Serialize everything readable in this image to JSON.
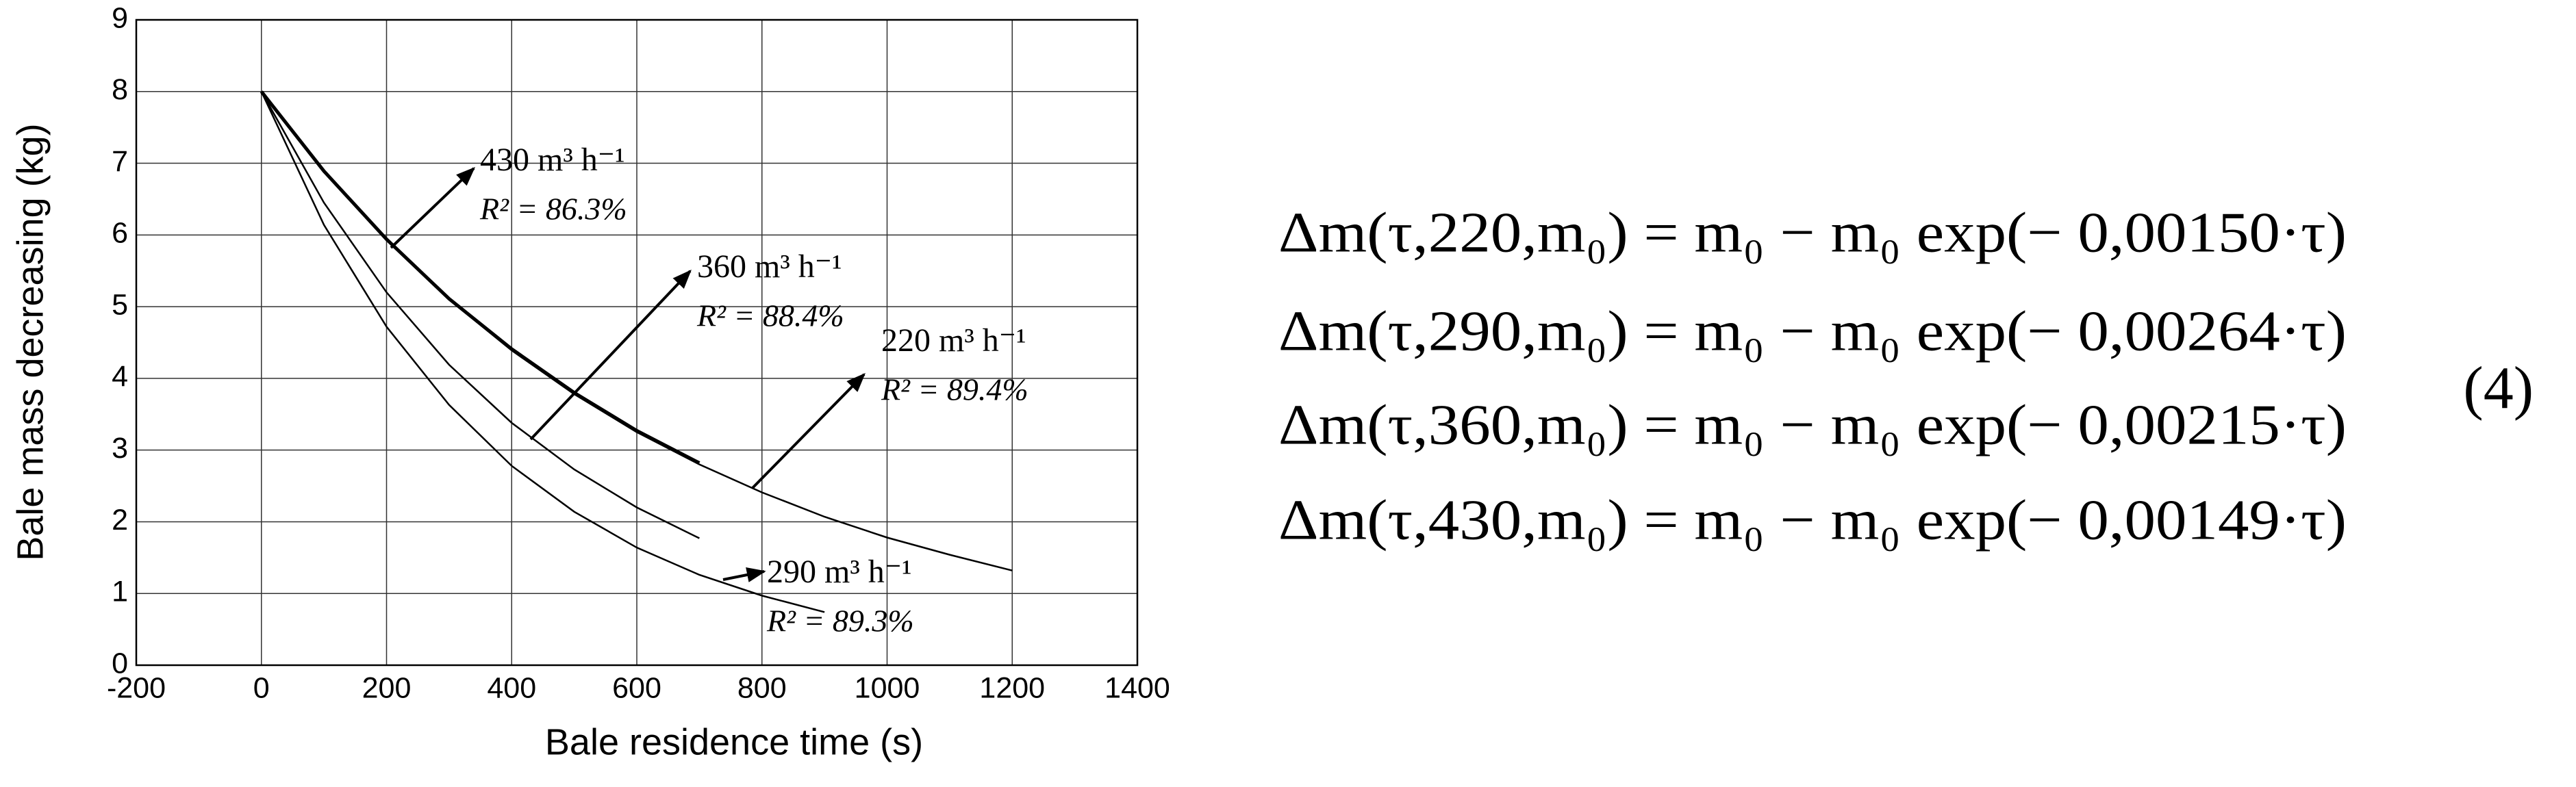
{
  "chart_data": {
    "type": "line",
    "x_label": "Bale residence time (s)",
    "y_label": "Bale mass decreasing (kg)",
    "x": [
      0,
      100,
      200,
      300,
      400,
      500,
      600,
      700,
      800,
      900,
      1000,
      1100,
      1200
    ],
    "series": [
      {
        "name": "430",
        "color": "#000000",
        "values": [
          8,
          6.89,
          5.94,
          5.11,
          4.41,
          3.8,
          3.27,
          2.82,
          null,
          null,
          null,
          null,
          null
        ]
      },
      {
        "name": "220",
        "color": "#000000",
        "values": [
          8,
          6.89,
          5.93,
          5.1,
          4.39,
          3.78,
          3.25,
          2.8,
          2.41,
          2.07,
          1.78,
          1.54,
          1.32
        ]
      },
      {
        "name": "360",
        "color": "#000000",
        "values": [
          8,
          6.45,
          5.2,
          4.19,
          3.38,
          2.73,
          2.2,
          1.77,
          null,
          null,
          null,
          null,
          null
        ]
      },
      {
        "name": "290",
        "color": "#000000",
        "values": [
          8,
          6.14,
          4.72,
          3.63,
          2.78,
          2.14,
          1.64,
          1.26,
          0.97,
          0.74,
          null,
          null,
          null
        ]
      }
    ],
    "annotations": [
      {
        "label": "430 m³ h⁻¹",
        "r2": "R² = 86.3%"
      },
      {
        "label": "360 m³ h⁻¹",
        "r2": "R² = 88.4%"
      },
      {
        "label": "220 m³ h⁻¹",
        "r2": "R² = 89.4%"
      },
      {
        "label": "290 m³ h⁻¹",
        "r2": "R² = 89.3%"
      }
    ],
    "xlim": [
      -200,
      1400
    ],
    "xticks": [
      -200,
      0,
      200,
      400,
      600,
      800,
      1000,
      1200,
      1400
    ],
    "ylim": [
      0,
      9
    ],
    "yticks": [
      0,
      1,
      2,
      3,
      4,
      5,
      6,
      7,
      8,
      9
    ],
    "grid": true
  },
  "equations": [
    "Δm(τ,220,m₀) = m₀ − m₀ exp(− 0,00150·τ)",
    "Δm(τ,290,m₀) = m₀ − m₀ exp(− 0,00264·τ)",
    "Δm(τ,360,m₀) = m₀ − m₀ exp(− 0,00215·τ)",
    "Δm(τ,430,m₀) = m₀ − m₀ exp(− 0,00149·τ)"
  ],
  "equation_number": "(4)"
}
